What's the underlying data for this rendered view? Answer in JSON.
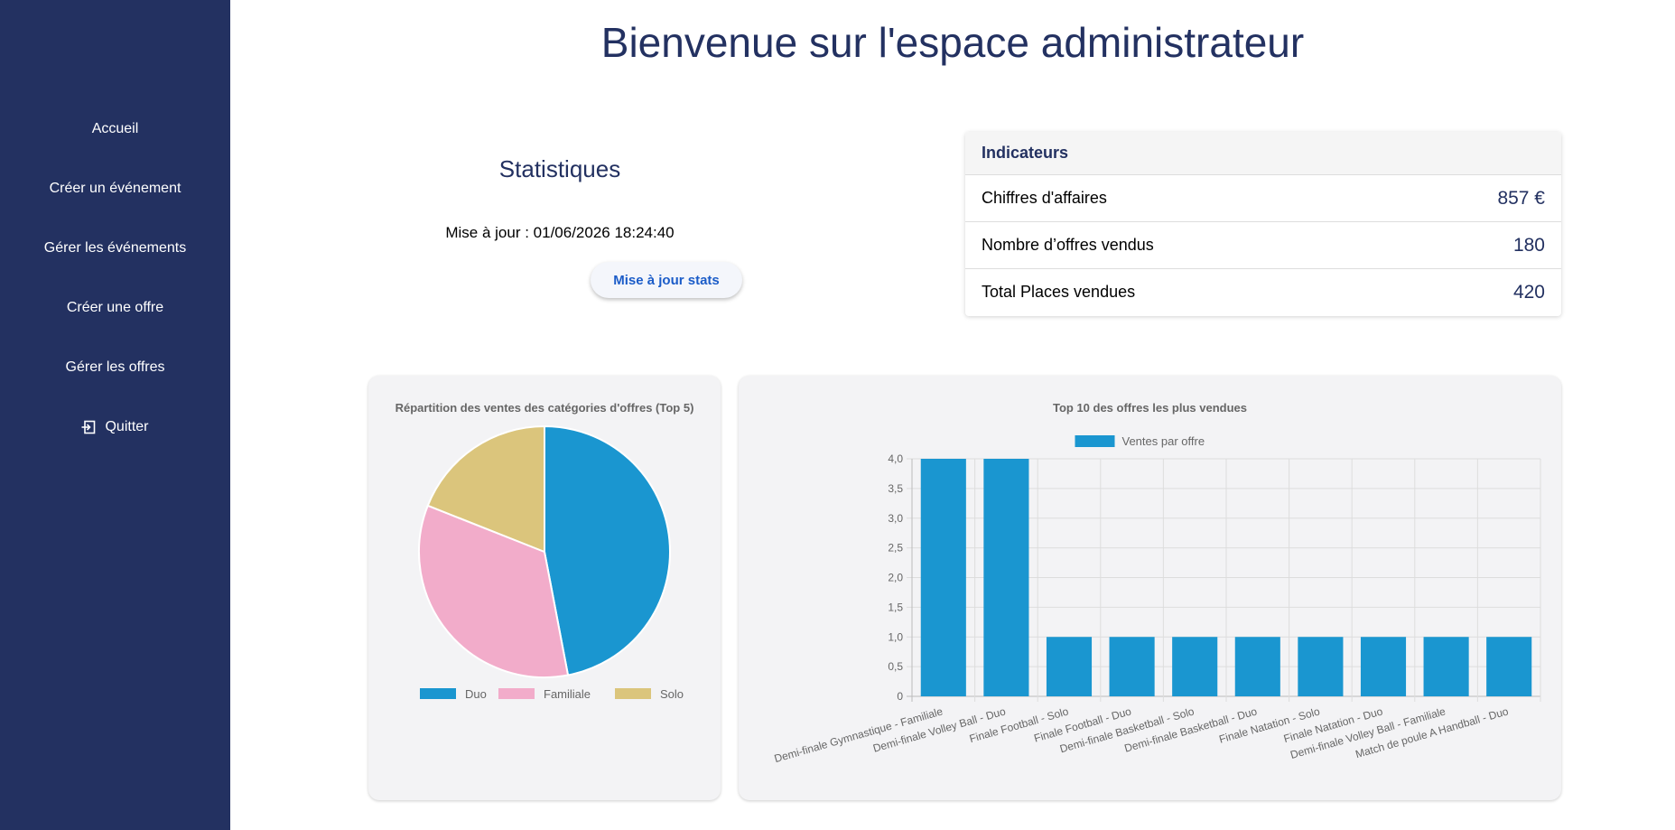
{
  "sidebar": {
    "items": [
      {
        "label": "Accueil"
      },
      {
        "label": "Créer un événement"
      },
      {
        "label": "Gérer les événements"
      },
      {
        "label": "Créer une offre"
      },
      {
        "label": "Gérer les offres"
      },
      {
        "label": "Quitter",
        "icon": "logout-icon"
      }
    ]
  },
  "page": {
    "title": "Bienvenue sur l'espace administrateur"
  },
  "stats": {
    "title": "Statistiques",
    "updated": "Mise à jour : 01/06/2026 18:24:40",
    "button_label": "Mise à jour stats"
  },
  "indicators": {
    "title": "Indicateurs",
    "rows": [
      {
        "label": "Chiffres d'affaires",
        "value": "857 €"
      },
      {
        "label": "Nombre d’offres vendus",
        "value": "180"
      },
      {
        "label": "Total Places vendues",
        "value": "420"
      }
    ]
  },
  "colors": {
    "sidebar": "#233161",
    "accent": "#233161",
    "duo": "#1a96d0",
    "familiale": "#f2acca",
    "solo": "#dbc57c"
  },
  "chart_data": [
    {
      "type": "pie",
      "title": "Répartition des ventes des catégories d'offres (Top 5)",
      "categories": [
        "Duo",
        "Familiale",
        "Solo"
      ],
      "values": [
        47,
        34,
        19
      ],
      "legend": "bottom",
      "colors": [
        "#1a96d0",
        "#f2acca",
        "#dbc57c"
      ]
    },
    {
      "type": "bar",
      "title": "Top 10 des offres les plus vendues",
      "legend": "top",
      "categories": [
        "Demi-finale Gymnastique - Familiale",
        "Demi-finale Volley Ball - Duo",
        "Finale Football - Solo",
        "Finale Football - Duo",
        "Demi-finale Basketball - Solo",
        "Demi-finale Basketball - Duo",
        "Finale Natation - Solo",
        "Finale Natation - Duo",
        "Demi-finale Volley Ball - Familiale",
        "Match de poule A Handball - Duo"
      ],
      "series": [
        {
          "name": "Ventes par offre",
          "values": [
            4,
            4,
            1,
            1,
            1,
            1,
            1,
            1,
            1,
            1
          ]
        }
      ],
      "ylim": [
        0,
        4
      ],
      "yticks": [
        "0",
        "0,5",
        "1,0",
        "1,5",
        "2,0",
        "2,5",
        "3,0",
        "3,5",
        "4,0"
      ],
      "grid": true,
      "color": "#1a96d0"
    }
  ]
}
